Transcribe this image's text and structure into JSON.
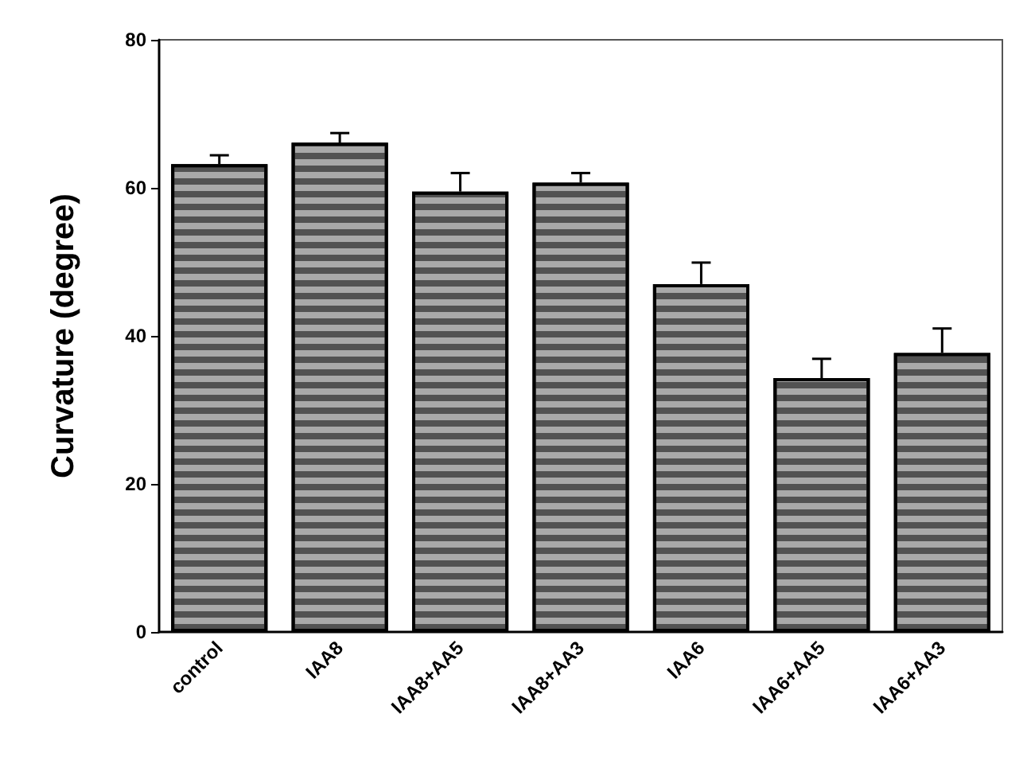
{
  "chart_data": {
    "type": "bar",
    "ylabel": "Curvature (degree)",
    "categories": [
      "control",
      "IAA8",
      "IAA8+AA5",
      "IAA8+AA3",
      "IAA6",
      "IAA6+AA5",
      "IAA6+AA3"
    ],
    "values": [
      63.2,
      66.1,
      59.5,
      60.7,
      47.0,
      34.3,
      37.7
    ],
    "errors": [
      1.2,
      1.3,
      2.5,
      1.3,
      2.9,
      2.6,
      3.3
    ],
    "color": "#a9a9a9",
    "ylim": [
      0,
      80
    ],
    "yticks": [
      0,
      20,
      40,
      60,
      80
    ],
    "grid": false
  }
}
